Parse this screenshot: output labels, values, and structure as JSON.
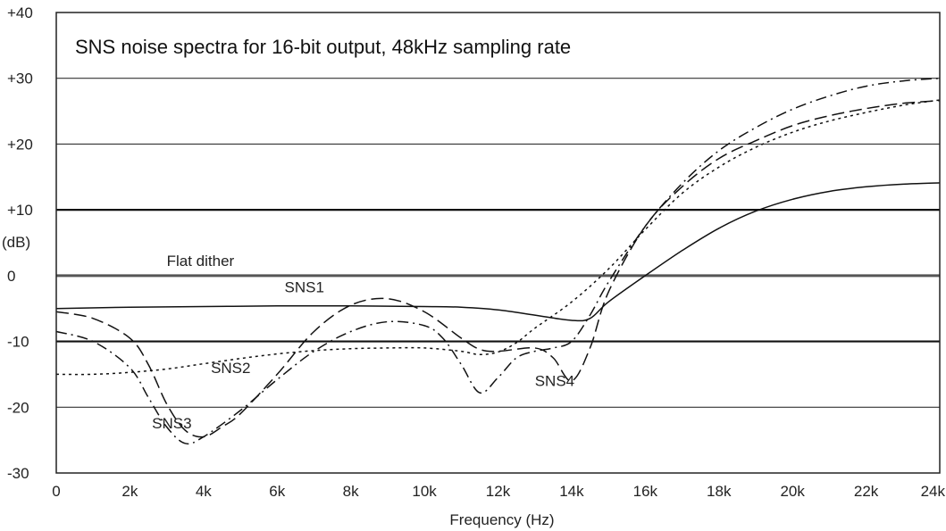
{
  "chart_data": {
    "type": "line",
    "title": "SNS noise spectra for 16-bit output, 48kHz sampling rate",
    "xlabel": "Frequency (Hz)",
    "ylabel": "(dB)",
    "xlim": [
      0,
      24000
    ],
    "ylim": [
      -30,
      40
    ],
    "x_ticks": [
      0,
      2000,
      4000,
      6000,
      8000,
      10000,
      12000,
      14000,
      16000,
      18000,
      20000,
      22000,
      24000
    ],
    "x_tick_labels": [
      "0",
      "2k",
      "4k",
      "6k",
      "8k",
      "10k",
      "12k",
      "14k",
      "16k",
      "18k",
      "20k",
      "22k",
      "24k"
    ],
    "y_ticks": [
      -30,
      -20,
      -10,
      0,
      10,
      20,
      30,
      40
    ],
    "y_tick_labels": [
      "-30",
      "-20",
      "-10",
      "0",
      "+10",
      "+20",
      "+30",
      "+40"
    ],
    "grid": "horizontal",
    "series": [
      {
        "name": "Flat dither",
        "style": "solid",
        "x": [
          0,
          24000
        ],
        "y": [
          0,
          0
        ]
      },
      {
        "name": "SNS1",
        "style": "solid",
        "x": [
          0,
          2000,
          4000,
          6000,
          8000,
          10000,
          11000,
          12000,
          13000,
          14000,
          14500,
          15000,
          16000,
          17000,
          18000,
          19000,
          20000,
          21000,
          22000,
          23000,
          24000
        ],
        "y": [
          -5,
          -4.8,
          -4.7,
          -4.6,
          -4.6,
          -4.7,
          -4.8,
          -5.2,
          -6.0,
          -6.8,
          -6.5,
          -4.0,
          0,
          3.8,
          7.2,
          9.8,
          11.6,
          12.8,
          13.5,
          13.9,
          14.1
        ]
      },
      {
        "name": "SNS2",
        "style": "dotted",
        "x": [
          0,
          1000,
          2000,
          3000,
          4000,
          5000,
          6000,
          7000,
          8000,
          9000,
          10000,
          11000,
          11500,
          12000,
          12500,
          13000,
          14000,
          15000,
          16000,
          17000,
          18000,
          19000,
          20000,
          21000,
          22000,
          23000,
          24000
        ],
        "y": [
          -15,
          -15,
          -14.7,
          -14.2,
          -13.4,
          -12.6,
          -11.9,
          -11.4,
          -11.1,
          -11.0,
          -11.0,
          -11.5,
          -12.0,
          -11.6,
          -10.2,
          -8.0,
          -4.0,
          1.0,
          7.0,
          12.5,
          16.5,
          19.5,
          21.8,
          23.5,
          24.8,
          25.9,
          26.7
        ]
      },
      {
        "name": "SNS3",
        "style": "dash-dot",
        "x": [
          0,
          1000,
          2000,
          2500,
          3000,
          3500,
          4000,
          5000,
          6000,
          7000,
          8000,
          9000,
          10000,
          10500,
          11000,
          11500,
          12000,
          12500,
          13000,
          13500,
          14000,
          14500,
          15000,
          16000,
          17000,
          18000,
          19000,
          20000,
          21000,
          22000,
          23000,
          24000
        ],
        "y": [
          -8.5,
          -10,
          -14,
          -18.5,
          -23,
          -25.5,
          -24.5,
          -20.5,
          -15.8,
          -11.5,
          -8.5,
          -7.0,
          -7.6,
          -9.5,
          -13.5,
          -17.8,
          -15.5,
          -12.5,
          -11.5,
          -11.0,
          -10.0,
          -6.0,
          -1.0,
          7.5,
          14.0,
          19.0,
          22.5,
          25.3,
          27.3,
          28.8,
          29.6,
          30.0
        ]
      },
      {
        "name": "SNS4",
        "style": "dash",
        "x": [
          0,
          1000,
          2000,
          2500,
          3000,
          3500,
          4000,
          4500,
          5000,
          6000,
          7000,
          8000,
          9000,
          10000,
          11000,
          11500,
          12000,
          13000,
          13500,
          14000,
          14500,
          15000,
          16000,
          17000,
          18000,
          19000,
          20000,
          21000,
          22000,
          23000,
          24000
        ],
        "y": [
          -5.5,
          -6.5,
          -9.5,
          -13.5,
          -19.5,
          -23.5,
          -24.5,
          -23.0,
          -21.0,
          -15.0,
          -8.5,
          -4.5,
          -3.5,
          -5.5,
          -9.5,
          -11.2,
          -11.5,
          -11.0,
          -12.5,
          -16.0,
          -11.0,
          -2.5,
          7.5,
          13.5,
          17.8,
          20.5,
          22.8,
          24.3,
          25.4,
          26.2,
          26.6
        ]
      }
    ],
    "annotations": [
      {
        "text": "Flat dither",
        "x": 3000,
        "y": 1.5
      },
      {
        "text": "SNS1",
        "x": 6200,
        "y": -2.5
      },
      {
        "text": "SNS2",
        "x": 4200,
        "y": -14.8
      },
      {
        "text": "SNS3",
        "x": 2600,
        "y": -23.2
      },
      {
        "text": "SNS4",
        "x": 13000,
        "y": -16.8
      }
    ]
  }
}
